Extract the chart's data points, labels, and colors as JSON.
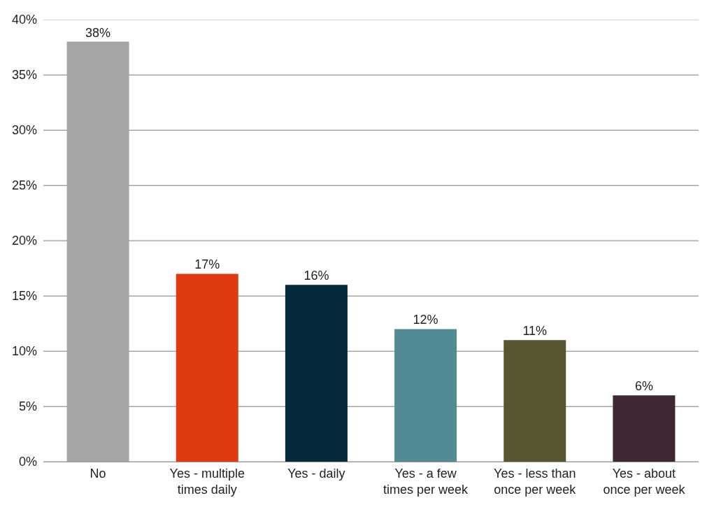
{
  "chart_data": {
    "type": "bar",
    "categories": [
      "No",
      "Yes - multiple times daily",
      "Yes - daily",
      "Yes - a few times per week",
      "Yes - less than once per week",
      "Yes - about once per week"
    ],
    "values": [
      38,
      17,
      16,
      12,
      11,
      6
    ],
    "colors": [
      "#a6a6a6",
      "#e03a12",
      "#042a3c",
      "#538b94",
      "#585630",
      "#3f2733"
    ],
    "value_labels": [
      "38%",
      "17%",
      "16%",
      "12%",
      "11%",
      "6%"
    ],
    "ylim": [
      0,
      40
    ],
    "yticks": [
      {
        "value": 0,
        "label": "0%"
      },
      {
        "value": 5,
        "label": "5%"
      },
      {
        "value": 10,
        "label": "10%"
      },
      {
        "value": 15,
        "label": "15%"
      },
      {
        "value": 20,
        "label": "20%"
      },
      {
        "value": 25,
        "label": "25%"
      },
      {
        "value": 30,
        "label": "30%"
      },
      {
        "value": 35,
        "label": "35%"
      },
      {
        "value": 40,
        "label": "40%"
      }
    ],
    "grid": "y"
  }
}
